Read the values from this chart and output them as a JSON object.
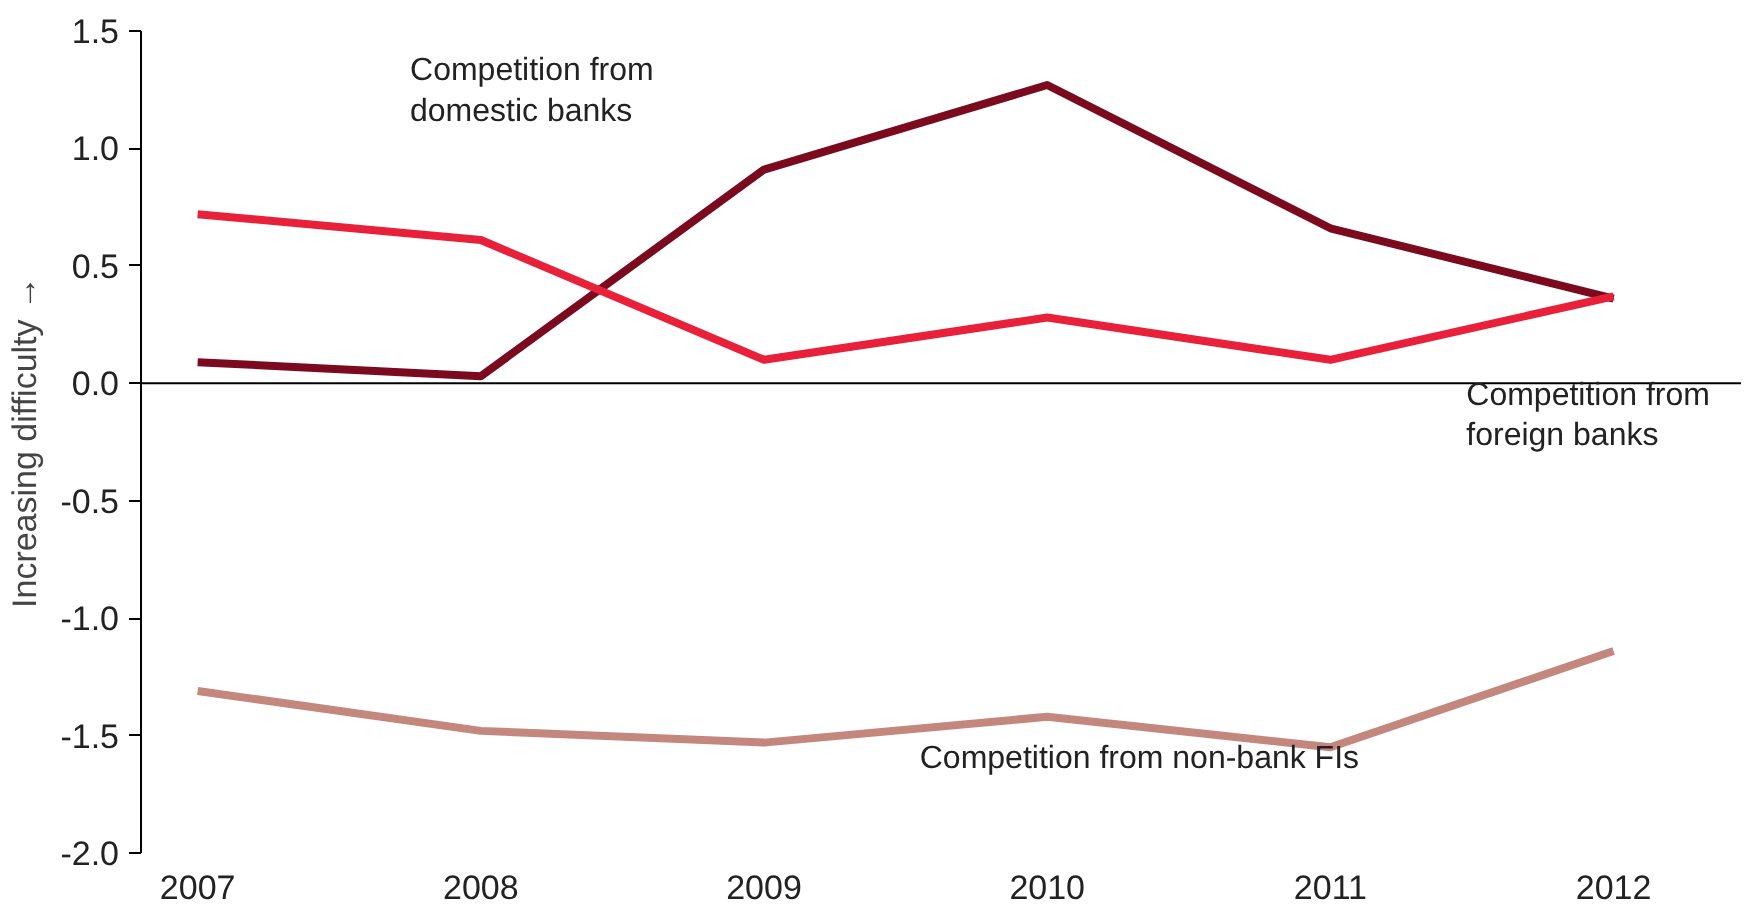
{
  "chart_data": {
    "type": "line",
    "ylabel": "Increasing difficulty →",
    "x": [
      2007,
      2008,
      2009,
      2010,
      2011,
      2012
    ],
    "xlim": [
      2006.8,
      2012.45
    ],
    "xticks": [
      2007,
      2008,
      2009,
      2010,
      2011,
      2012
    ],
    "ylim": [
      -2.0,
      1.5
    ],
    "yticks": [
      {
        "value": -2.0,
        "label": "-2.0"
      },
      {
        "value": -1.5,
        "label": "-1.5"
      },
      {
        "value": -1.0,
        "label": "-1.0"
      },
      {
        "value": -0.5,
        "label": "-0.5"
      },
      {
        "value": 0.0,
        "label": "0.0"
      },
      {
        "value": 0.5,
        "label": "0.5"
      },
      {
        "value": 1.0,
        "label": "1.0"
      },
      {
        "value": 1.5,
        "label": "1.5"
      }
    ],
    "series": [
      {
        "color": "#7b0a1e",
        "values": [
          0.09,
          0.03,
          0.91,
          1.27,
          0.66,
          0.36
        ]
      },
      {
        "color": "#e8203a",
        "values": [
          0.72,
          0.61,
          0.1,
          0.28,
          0.1,
          0.37
        ]
      },
      {
        "color": "#c4877e",
        "values": [
          -1.31,
          -1.48,
          -1.53,
          -1.42,
          -1.55,
          -1.14
        ]
      }
    ],
    "annotations": [
      "Competition from\ndomestic banks",
      "Competition from\nforeign banks",
      "Competition from non-bank FIs"
    ],
    "ref_lines": [
      {
        "axis": "y",
        "value": 0,
        "color": "#000000"
      }
    ],
    "grid": false,
    "marker": "none",
    "line_style": "solid"
  }
}
